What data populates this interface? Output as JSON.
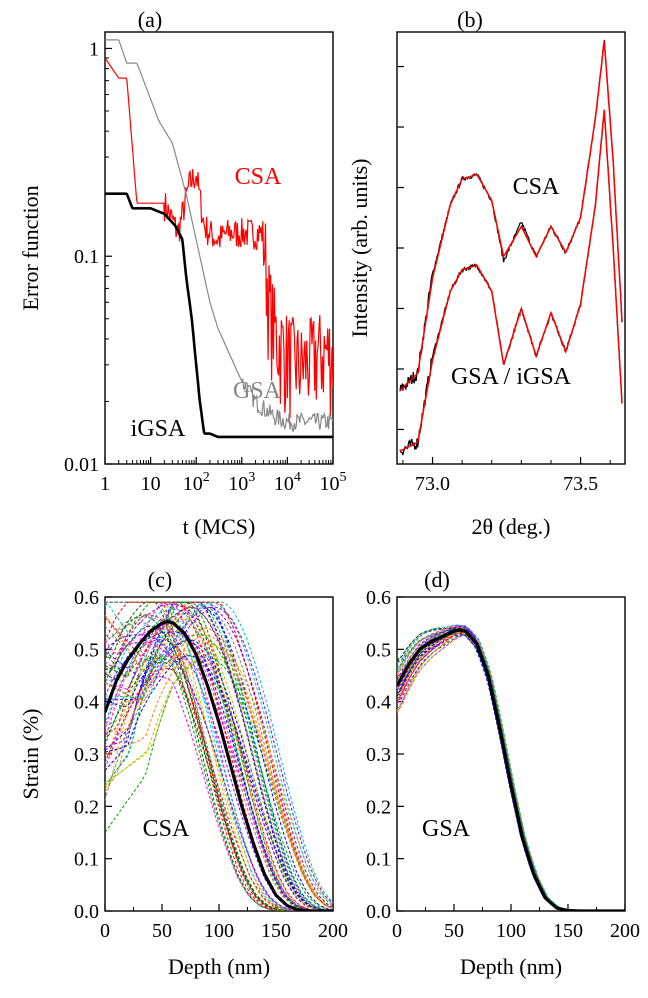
{
  "chart_data": [
    {
      "panel": "(a)",
      "type": "line",
      "xlabel": "t (MCS)",
      "ylabel": "Error function",
      "xscale": "log",
      "yscale": "log",
      "xlim": [
        1,
        100000
      ],
      "ylim": [
        0.01,
        1.2
      ],
      "xticks": [
        {
          "v": 1,
          "b": "1"
        },
        {
          "v": 10,
          "b": "10"
        },
        {
          "v": 100,
          "b": "10",
          "e": "2"
        },
        {
          "v": 1000,
          "b": "10",
          "e": "3"
        },
        {
          "v": 10000,
          "b": "10",
          "e": "4"
        },
        {
          "v": 100000,
          "b": "10",
          "e": "5"
        }
      ],
      "yticks": [
        {
          "v": 0.01,
          "label": "0.01"
        },
        {
          "v": 0.1,
          "label": "0.1"
        },
        {
          "v": 1,
          "label": "1"
        }
      ],
      "series": [
        {
          "name": "CSA",
          "color": "#ff0000",
          "x": [
            1,
            2,
            3,
            5,
            10,
            20,
            40,
            70,
            100,
            150,
            200,
            300,
            500,
            1000,
            2000,
            3000,
            4000,
            6000,
            10000,
            20000,
            50000,
            100000
          ],
          "y": [
            0.9,
            0.72,
            0.72,
            0.18,
            0.18,
            0.18,
            0.13,
            0.22,
            0.25,
            0.14,
            0.13,
            0.12,
            0.13,
            0.13,
            0.13,
            0.13,
            0.06,
            0.04,
            0.035,
            0.03,
            0.035,
            0.035
          ]
        },
        {
          "name": "GSA",
          "color": "#888888",
          "x": [
            1,
            2,
            3,
            5,
            8,
            15,
            30,
            60,
            100,
            150,
            200,
            300,
            500,
            1000,
            2000,
            5000,
            10000,
            30000,
            100000
          ],
          "y": [
            1.1,
            1.1,
            0.85,
            0.85,
            0.65,
            0.45,
            0.35,
            0.2,
            0.12,
            0.08,
            0.06,
            0.045,
            0.035,
            0.025,
            0.02,
            0.017,
            0.016,
            0.016,
            0.016
          ]
        },
        {
          "name": "iGSA",
          "color": "#000000",
          "x": [
            1,
            3,
            4,
            10,
            20,
            35,
            50,
            60,
            80,
            100,
            120,
            150,
            200,
            300,
            1000,
            100000
          ],
          "y": [
            0.2,
            0.2,
            0.17,
            0.17,
            0.16,
            0.14,
            0.12,
            0.08,
            0.05,
            0.03,
            0.02,
            0.014,
            0.014,
            0.0135,
            0.0135,
            0.0135
          ]
        }
      ],
      "annotations": [
        "CSA",
        "GSA",
        "iGSA"
      ]
    },
    {
      "panel": "(b)",
      "type": "line",
      "xlabel": "2θ (deg.)",
      "ylabel": "Intensity (arb. units)",
      "yscale": "log",
      "xlim": [
        72.88,
        73.65
      ],
      "ylim": [
        0,
        1
      ],
      "xticks": [
        {
          "v": 73.0,
          "label": "73.0"
        },
        {
          "v": 73.5,
          "label": "73.5"
        }
      ],
      "series": [
        {
          "name": "CSA",
          "role": "experimental",
          "color": "#000000",
          "x": [
            72.89,
            72.95,
            73.0,
            73.06,
            73.1,
            73.15,
            73.2,
            73.24,
            73.3,
            73.35,
            73.4,
            73.45,
            73.5,
            73.55,
            73.58,
            73.61,
            73.64
          ],
          "y": [
            0.17,
            0.21,
            0.44,
            0.6,
            0.66,
            0.67,
            0.61,
            0.47,
            0.56,
            0.48,
            0.55,
            0.49,
            0.57,
            0.8,
            0.98,
            0.7,
            0.33
          ]
        },
        {
          "name": "CSA",
          "role": "fit",
          "color": "#ff0000",
          "x": [
            72.89,
            72.95,
            73.0,
            73.06,
            73.1,
            73.15,
            73.2,
            73.24,
            73.3,
            73.35,
            73.4,
            73.45,
            73.5,
            73.55,
            73.58,
            73.61,
            73.64
          ],
          "y": [
            0.17,
            0.21,
            0.43,
            0.6,
            0.66,
            0.67,
            0.61,
            0.48,
            0.55,
            0.48,
            0.55,
            0.49,
            0.57,
            0.8,
            0.98,
            0.7,
            0.33
          ]
        },
        {
          "name": "GSA / iGSA",
          "role": "experimental",
          "color": "#000000",
          "x": [
            72.89,
            72.95,
            73.0,
            73.06,
            73.1,
            73.15,
            73.2,
            73.24,
            73.3,
            73.35,
            73.4,
            73.45,
            73.5,
            73.55,
            73.58,
            73.61,
            73.64
          ],
          "y": [
            0.03,
            0.05,
            0.25,
            0.4,
            0.45,
            0.46,
            0.4,
            0.23,
            0.36,
            0.25,
            0.35,
            0.26,
            0.37,
            0.6,
            0.82,
            0.5,
            0.14
          ]
        },
        {
          "name": "GSA / iGSA",
          "role": "fit",
          "color": "#ff0000",
          "x": [
            72.89,
            72.95,
            73.0,
            73.06,
            73.1,
            73.15,
            73.2,
            73.24,
            73.3,
            73.35,
            73.4,
            73.45,
            73.5,
            73.55,
            73.58,
            73.61,
            73.64
          ],
          "y": [
            0.03,
            0.05,
            0.24,
            0.4,
            0.45,
            0.46,
            0.4,
            0.23,
            0.36,
            0.25,
            0.35,
            0.26,
            0.37,
            0.6,
            0.82,
            0.5,
            0.14
          ]
        }
      ],
      "annotations": [
        "CSA",
        "GSA / iGSA"
      ]
    },
    {
      "panel": "(c)",
      "type": "line",
      "xlabel": "Depth (nm)",
      "ylabel": "Strain (%)",
      "xlim": [
        0,
        200
      ],
      "ylim": [
        0.0,
        0.6
      ],
      "xticks": [
        0,
        50,
        100,
        150,
        200
      ],
      "yticks": [
        "0.0",
        "0.1",
        "0.2",
        "0.3",
        "0.4",
        "0.5",
        "0.6"
      ],
      "best_fit": {
        "color": "#000000",
        "x": [
          0,
          10,
          20,
          30,
          40,
          50,
          55,
          60,
          70,
          80,
          90,
          100,
          110,
          120,
          130,
          140,
          150,
          160,
          170,
          180,
          190,
          200
        ],
        "y": [
          0.38,
          0.44,
          0.48,
          0.51,
          0.535,
          0.55,
          0.553,
          0.55,
          0.53,
          0.49,
          0.43,
          0.36,
          0.28,
          0.2,
          0.13,
          0.07,
          0.03,
          0.01,
          0.002,
          0.0,
          0.0,
          0.0
        ]
      },
      "ensemble_envelope": {
        "color": "multicolor dashed",
        "x": [
          0,
          25,
          50,
          75,
          100,
          125,
          150,
          175,
          200
        ],
        "y_min": [
          0.15,
          0.25,
          0.45,
          0.4,
          0.2,
          0.05,
          0.0,
          0.0,
          0.0
        ],
        "y_max": [
          0.55,
          0.55,
          0.58,
          0.57,
          0.58,
          0.4,
          0.2,
          0.05,
          0.0
        ]
      },
      "annotations": [
        "CSA"
      ]
    },
    {
      "panel": "(d)",
      "type": "line",
      "xlabel": "Depth (nm)",
      "ylabel": "",
      "xlim": [
        0,
        200
      ],
      "ylim": [
        0.0,
        0.6
      ],
      "xticks": [
        0,
        50,
        100,
        150,
        200
      ],
      "yticks": [
        "0.0",
        "0.1",
        "0.2",
        "0.3",
        "0.4",
        "0.5",
        "0.6"
      ],
      "best_fit": {
        "color": "#000000",
        "x": [
          0,
          10,
          20,
          30,
          40,
          50,
          55,
          60,
          70,
          80,
          90,
          100,
          110,
          120,
          130,
          140,
          150,
          160,
          170,
          180,
          190,
          200
        ],
        "y": [
          0.43,
          0.47,
          0.5,
          0.515,
          0.525,
          0.535,
          0.537,
          0.535,
          0.51,
          0.45,
          0.35,
          0.24,
          0.14,
          0.07,
          0.025,
          0.006,
          0.001,
          0.0,
          0.0,
          0.0,
          0.0,
          0.0
        ]
      },
      "ensemble_envelope": {
        "color": "multicolor dashed",
        "x": [
          0,
          25,
          50,
          75,
          100,
          125,
          150,
          175,
          200
        ],
        "y_min": [
          0.37,
          0.47,
          0.52,
          0.48,
          0.23,
          0.04,
          0.0,
          0.0,
          0.0
        ],
        "y_max": [
          0.45,
          0.51,
          0.56,
          0.5,
          0.25,
          0.05,
          0.002,
          0.0,
          0.0
        ]
      },
      "annotations": [
        "GSA"
      ]
    }
  ],
  "ensemble_colors": [
    "#ff0000",
    "#00a000",
    "#0000ff",
    "#ff00ff",
    "#00c0c0",
    "#c0c000",
    "#ff8000",
    "#8000ff",
    "#808080",
    "#006000"
  ]
}
